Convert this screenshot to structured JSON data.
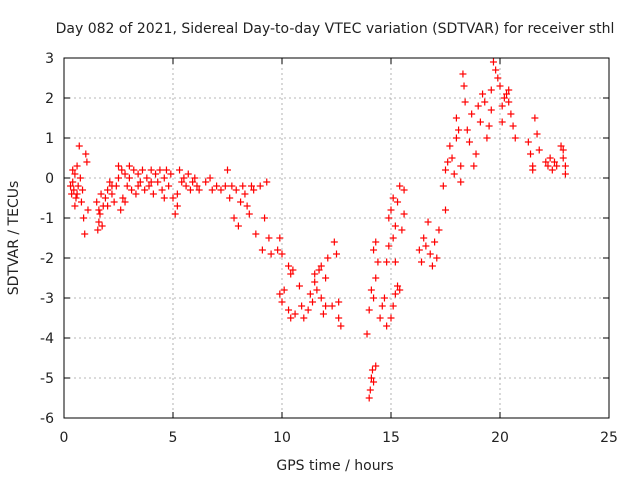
{
  "chart_data": {
    "type": "scatter",
    "title": "Day 082 of 2021, Sidereal Day-to-day VTEC variation (SDTVAR) for receiver sthl",
    "xlabel": "GPS time / hours",
    "ylabel": "SDTVAR / TECUs",
    "xlim": [
      0,
      25
    ],
    "ylim": [
      -6,
      3
    ],
    "xticks": [
      "0",
      "5",
      "10",
      "15",
      "20",
      "25"
    ],
    "yticks": [
      "3",
      "2",
      "1",
      "0",
      "-1",
      "-2",
      "-3",
      "-4",
      "-5",
      "-6"
    ],
    "xtick_values": [
      0,
      5,
      10,
      15,
      20,
      25
    ],
    "ytick_values": [
      3,
      2,
      1,
      0,
      -1,
      -2,
      -3,
      -4,
      -5,
      -6
    ],
    "grid": true,
    "marker": "+",
    "color": "#ff0000",
    "series": [
      {
        "name": "sthl",
        "points": [
          [
            0.3,
            -0.2
          ],
          [
            0.35,
            -0.4
          ],
          [
            0.4,
            -0.1
          ],
          [
            0.45,
            -0.3
          ],
          [
            0.5,
            0.1
          ],
          [
            0.55,
            -0.5
          ],
          [
            0.6,
            0.3
          ],
          [
            0.65,
            -0.2
          ],
          [
            0.7,
            0.8
          ],
          [
            0.75,
            0.0
          ],
          [
            0.8,
            -0.6
          ],
          [
            0.85,
            -0.3
          ],
          [
            0.9,
            -1.0
          ],
          [
            0.95,
            -1.4
          ],
          [
            1.0,
            0.6
          ],
          [
            1.05,
            0.4
          ],
          [
            1.1,
            -0.8
          ],
          [
            0.5,
            -0.7
          ],
          [
            0.6,
            -0.4
          ],
          [
            0.4,
            0.2
          ],
          [
            1.5,
            -0.6
          ],
          [
            1.55,
            -1.3
          ],
          [
            1.6,
            -1.1
          ],
          [
            1.65,
            -0.9
          ],
          [
            1.7,
            -0.4
          ],
          [
            1.75,
            -1.2
          ],
          [
            1.8,
            -0.7
          ],
          [
            1.9,
            -0.5
          ],
          [
            2.0,
            -0.3
          ],
          [
            2.1,
            -0.1
          ],
          [
            2.2,
            -0.4
          ],
          [
            2.3,
            -0.6
          ],
          [
            2.4,
            -0.2
          ],
          [
            2.5,
            0.0
          ],
          [
            1.6,
            -0.8
          ],
          [
            2.0,
            -0.7
          ],
          [
            2.2,
            -0.2
          ],
          [
            2.5,
            0.3
          ],
          [
            2.6,
            -0.8
          ],
          [
            2.65,
            0.2
          ],
          [
            2.7,
            -0.5
          ],
          [
            2.8,
            0.1
          ],
          [
            2.9,
            -0.2
          ],
          [
            3.0,
            0.0
          ],
          [
            3.1,
            -0.3
          ],
          [
            3.2,
            0.2
          ],
          [
            3.3,
            -0.4
          ],
          [
            3.4,
            0.1
          ],
          [
            3.5,
            -0.1
          ],
          [
            3.6,
            0.2
          ],
          [
            3.7,
            -0.3
          ],
          [
            3.8,
            0.0
          ],
          [
            3.9,
            -0.2
          ],
          [
            4.0,
            0.2
          ],
          [
            4.1,
            -0.4
          ],
          [
            4.2,
            0.1
          ],
          [
            4.3,
            -0.1
          ],
          [
            4.4,
            0.2
          ],
          [
            4.5,
            -0.3
          ],
          [
            4.6,
            0.0
          ],
          [
            4.7,
            0.2
          ],
          [
            4.8,
            -0.2
          ],
          [
            4.9,
            0.1
          ],
          [
            5.0,
            -0.5
          ],
          [
            5.1,
            -0.9
          ],
          [
            5.2,
            -0.4
          ],
          [
            5.3,
            0.2
          ],
          [
            5.4,
            -0.1
          ],
          [
            5.5,
            0.0
          ],
          [
            5.6,
            -0.2
          ],
          [
            5.7,
            0.1
          ],
          [
            5.8,
            -0.3
          ],
          [
            5.9,
            -0.1
          ],
          [
            6.0,
            0.0
          ],
          [
            6.1,
            -0.2
          ],
          [
            6.2,
            -0.3
          ],
          [
            2.8,
            -0.6
          ],
          [
            3.0,
            0.3
          ],
          [
            3.4,
            -0.2
          ],
          [
            4.0,
            -0.1
          ],
          [
            4.6,
            -0.5
          ],
          [
            5.2,
            -0.7
          ],
          [
            6.5,
            -0.1
          ],
          [
            6.7,
            0.0
          ],
          [
            6.8,
            -0.3
          ],
          [
            7.0,
            -0.2
          ],
          [
            7.2,
            -0.3
          ],
          [
            7.4,
            -0.2
          ],
          [
            7.5,
            0.2
          ],
          [
            7.6,
            -0.5
          ],
          [
            7.7,
            -0.2
          ],
          [
            7.8,
            -1.0
          ],
          [
            7.9,
            -0.3
          ],
          [
            8.0,
            -1.2
          ],
          [
            8.1,
            -0.6
          ],
          [
            8.2,
            -0.2
          ],
          [
            8.3,
            -0.4
          ],
          [
            8.4,
            -0.7
          ],
          [
            8.5,
            -0.9
          ],
          [
            8.6,
            -0.2
          ],
          [
            8.7,
            -0.3
          ],
          [
            8.8,
            -1.4
          ],
          [
            9.0,
            -0.2
          ],
          [
            9.1,
            -1.8
          ],
          [
            9.2,
            -1.0
          ],
          [
            9.3,
            -0.1
          ],
          [
            9.5,
            -1.9
          ],
          [
            9.4,
            -1.5
          ],
          [
            9.8,
            -1.8
          ],
          [
            9.9,
            -1.5
          ],
          [
            10.0,
            -1.9
          ],
          [
            9.9,
            -2.9
          ],
          [
            10.0,
            -3.1
          ],
          [
            10.1,
            -2.8
          ],
          [
            10.3,
            -2.2
          ],
          [
            10.4,
            -2.4
          ],
          [
            10.5,
            -2.3
          ],
          [
            10.3,
            -3.3
          ],
          [
            10.4,
            -3.5
          ],
          [
            10.6,
            -3.4
          ],
          [
            10.8,
            -2.7
          ],
          [
            10.9,
            -3.2
          ],
          [
            11.0,
            -3.5
          ],
          [
            11.2,
            -3.3
          ],
          [
            11.3,
            -2.9
          ],
          [
            11.4,
            -3.1
          ],
          [
            11.5,
            -2.6
          ],
          [
            11.6,
            -2.8
          ],
          [
            11.7,
            -2.3
          ],
          [
            11.8,
            -3.0
          ],
          [
            11.9,
            -3.4
          ],
          [
            12.0,
            -2.5
          ],
          [
            12.1,
            -2.0
          ],
          [
            12.3,
            -3.2
          ],
          [
            12.4,
            -1.6
          ],
          [
            12.5,
            -1.9
          ],
          [
            12.6,
            -3.5
          ],
          [
            12.7,
            -3.7
          ],
          [
            12.6,
            -3.1
          ],
          [
            11.5,
            -2.4
          ],
          [
            11.8,
            -2.2
          ],
          [
            12.0,
            -3.2
          ],
          [
            13.9,
            -3.9
          ],
          [
            14.0,
            -3.3
          ],
          [
            14.1,
            -2.8
          ],
          [
            14.0,
            -5.5
          ],
          [
            14.05,
            -5.3
          ],
          [
            14.1,
            -5.0
          ],
          [
            14.15,
            -4.8
          ],
          [
            14.2,
            -5.1
          ],
          [
            14.3,
            -4.7
          ],
          [
            14.2,
            -3.0
          ],
          [
            14.3,
            -2.5
          ],
          [
            14.4,
            -2.1
          ],
          [
            14.2,
            -1.8
          ],
          [
            14.3,
            -1.6
          ],
          [
            14.5,
            -3.5
          ],
          [
            14.6,
            -3.2
          ],
          [
            14.7,
            -3.0
          ],
          [
            14.8,
            -3.7
          ],
          [
            14.8,
            -2.1
          ],
          [
            14.9,
            -1.7
          ],
          [
            15.0,
            -3.5
          ],
          [
            15.1,
            -3.2
          ],
          [
            15.2,
            -2.9
          ],
          [
            14.9,
            -1.0
          ],
          [
            15.0,
            -0.8
          ],
          [
            15.1,
            -0.5
          ],
          [
            15.1,
            -1.5
          ],
          [
            15.2,
            -1.2
          ],
          [
            15.3,
            -0.6
          ],
          [
            15.3,
            -2.7
          ],
          [
            15.4,
            -2.8
          ],
          [
            15.4,
            -0.2
          ],
          [
            15.5,
            -1.3
          ],
          [
            15.6,
            -0.9
          ],
          [
            15.6,
            -0.3
          ],
          [
            15.2,
            -2.1
          ],
          [
            16.3,
            -1.8
          ],
          [
            16.4,
            -2.1
          ],
          [
            16.5,
            -1.5
          ],
          [
            16.6,
            -1.7
          ],
          [
            16.7,
            -1.1
          ],
          [
            16.8,
            -1.9
          ],
          [
            16.9,
            -2.2
          ],
          [
            17.0,
            -1.6
          ],
          [
            17.1,
            -2.0
          ],
          [
            17.2,
            -1.3
          ],
          [
            17.4,
            -0.2
          ],
          [
            17.5,
            -0.8
          ],
          [
            17.5,
            0.2
          ],
          [
            17.6,
            0.4
          ],
          [
            17.7,
            0.8
          ],
          [
            17.8,
            0.5
          ],
          [
            17.9,
            0.1
          ],
          [
            18.0,
            1.0
          ],
          [
            18.0,
            1.5
          ],
          [
            18.1,
            1.2
          ],
          [
            18.2,
            0.3
          ],
          [
            18.2,
            -0.1
          ],
          [
            18.3,
            2.6
          ],
          [
            18.35,
            2.3
          ],
          [
            18.4,
            1.9
          ],
          [
            18.5,
            1.2
          ],
          [
            18.6,
            0.9
          ],
          [
            18.8,
            0.3
          ],
          [
            18.9,
            0.6
          ],
          [
            19.0,
            1.8
          ],
          [
            19.1,
            1.4
          ],
          [
            19.2,
            2.1
          ],
          [
            19.3,
            1.9
          ],
          [
            19.4,
            1.0
          ],
          [
            19.5,
            1.3
          ],
          [
            19.6,
            2.2
          ],
          [
            19.7,
            2.9
          ],
          [
            19.8,
            2.7
          ],
          [
            19.9,
            2.5
          ],
          [
            20.0,
            2.3
          ],
          [
            20.1,
            1.8
          ],
          [
            20.2,
            2.0
          ],
          [
            20.3,
            2.1
          ],
          [
            20.4,
            1.9
          ],
          [
            20.5,
            1.6
          ],
          [
            20.6,
            1.3
          ],
          [
            20.7,
            1.0
          ],
          [
            19.6,
            1.7
          ],
          [
            18.7,
            1.6
          ],
          [
            20.4,
            2.2
          ],
          [
            20.1,
            1.4
          ],
          [
            21.3,
            0.9
          ],
          [
            21.4,
            0.6
          ],
          [
            21.5,
            0.3
          ],
          [
            21.6,
            1.5
          ],
          [
            21.7,
            1.1
          ],
          [
            21.8,
            0.7
          ],
          [
            22.1,
            0.4
          ],
          [
            22.2,
            0.3
          ],
          [
            22.3,
            0.5
          ],
          [
            22.4,
            0.2
          ],
          [
            22.5,
            0.4
          ],
          [
            22.6,
            0.3
          ],
          [
            22.8,
            0.8
          ],
          [
            22.9,
            0.5
          ],
          [
            23.0,
            0.1
          ],
          [
            23.0,
            0.3
          ],
          [
            21.5,
            0.2
          ],
          [
            22.9,
            0.7
          ]
        ]
      }
    ]
  }
}
